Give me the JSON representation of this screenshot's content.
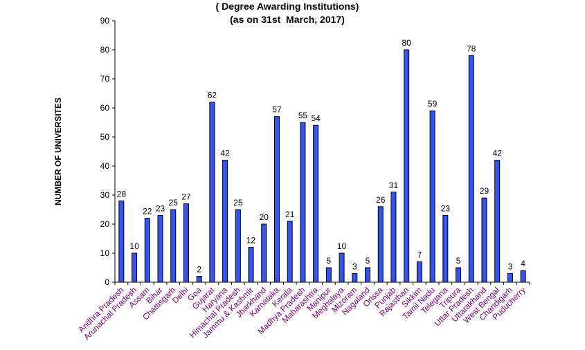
{
  "chart_data": {
    "type": "bar",
    "title": "( Degree Awarding Institutions)",
    "subtitle": "(as on 31st  March, 2017)",
    "xlabel": "",
    "ylabel": "NUMBER OF UNIVERSITES",
    "ylim": [
      0,
      90
    ],
    "yticks": [
      0,
      10,
      20,
      30,
      40,
      50,
      60,
      70,
      80,
      90
    ],
    "grid": false,
    "categories": [
      "Andhra Pradesh",
      "Arunachal Pradesh",
      "Assam",
      "Bihar",
      "Chattisgarh",
      "Delhi",
      "Goa",
      "Gujarat",
      "Haryana",
      "Himachal Pradesh",
      "Jammu & Kashmir",
      "Jharkhand",
      "Karnataka",
      "Kerala",
      "Madhya Pradesh",
      "Maharashtra",
      "Manipur",
      "Meghalaya",
      "Mizoram",
      "Nagaland",
      "Orissa",
      "Punjab",
      "Rajasthan",
      "Sikkim",
      "Tamil Nadu",
      "Telegana",
      "Tripura",
      "Uttar Pradesh",
      "Uttarakhand",
      "West Bengal",
      "Chandigarh",
      "Puducherry"
    ],
    "values": [
      28,
      10,
      22,
      23,
      25,
      27,
      2,
      62,
      42,
      25,
      12,
      20,
      57,
      21,
      55,
      54,
      5,
      10,
      3,
      5,
      26,
      31,
      80,
      7,
      59,
      23,
      5,
      78,
      29,
      42,
      3,
      4
    ],
    "colors": {
      "bar_fill": "#3355ee",
      "bar_stroke": "#000000",
      "category_label": "#800080",
      "axis": "#000000"
    }
  }
}
